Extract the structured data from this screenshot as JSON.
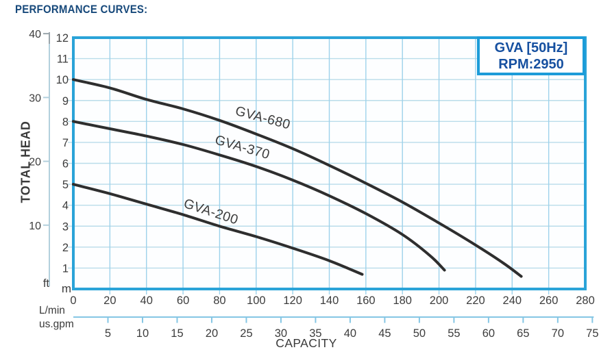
{
  "page_title": "PERFORMANCE CURVES:",
  "legend": {
    "line1": "GVA [50Hz]",
    "line2": "RPM:2950"
  },
  "chart_data": {
    "type": "line",
    "title": "GVA [50Hz] RPM:2950",
    "xlabel": "CAPACITY",
    "ylabel": "TOTAL HEAD",
    "grid": true,
    "x_axis_primary": {
      "unit": "L/min",
      "range": [
        0,
        280
      ],
      "ticks": [
        0,
        20,
        40,
        60,
        80,
        100,
        120,
        140,
        160,
        180,
        200,
        220,
        240,
        260,
        280
      ]
    },
    "x_axis_secondary": {
      "unit": "us.gpm",
      "ticks": [
        5,
        10,
        15,
        20,
        25,
        30,
        35,
        40,
        45,
        50,
        55,
        60,
        65,
        70,
        75
      ],
      "l_per_min_per_gpm": 3.785
    },
    "y_axis_primary": {
      "unit": "m",
      "range": [
        0,
        12
      ],
      "ticks": [
        1,
        2,
        3,
        4,
        5,
        6,
        7,
        8,
        9,
        10,
        11,
        12
      ]
    },
    "y_axis_secondary": {
      "unit": "ft",
      "ticks": [
        10,
        20,
        30,
        40
      ],
      "m_per_ft": 0.3048
    },
    "series": [
      {
        "name": "GVA-680",
        "points": [
          [
            0,
            10
          ],
          [
            20,
            9.6
          ],
          [
            40,
            9.05
          ],
          [
            60,
            8.6
          ],
          [
            80,
            8.05
          ],
          [
            100,
            7.4
          ],
          [
            120,
            6.7
          ],
          [
            140,
            5.9
          ],
          [
            160,
            5.05
          ],
          [
            180,
            4.15
          ],
          [
            200,
            3.15
          ],
          [
            220,
            2.1
          ],
          [
            235,
            1.25
          ],
          [
            245,
            0.6
          ]
        ]
      },
      {
        "name": "GVA-370",
        "points": [
          [
            0,
            8
          ],
          [
            20,
            7.65
          ],
          [
            40,
            7.3
          ],
          [
            60,
            6.9
          ],
          [
            80,
            6.4
          ],
          [
            100,
            5.85
          ],
          [
            120,
            5.2
          ],
          [
            140,
            4.45
          ],
          [
            160,
            3.6
          ],
          [
            180,
            2.6
          ],
          [
            195,
            1.6
          ],
          [
            203,
            0.9
          ]
        ]
      },
      {
        "name": "GVA-200",
        "points": [
          [
            0,
            5
          ],
          [
            20,
            4.55
          ],
          [
            40,
            4.05
          ],
          [
            60,
            3.55
          ],
          [
            80,
            3.0
          ],
          [
            100,
            2.5
          ],
          [
            120,
            1.95
          ],
          [
            140,
            1.35
          ],
          [
            158,
            0.7
          ]
        ]
      }
    ]
  },
  "colors": {
    "plot_border": "#2aa3d8",
    "grid_vertical": "#9dd2eb",
    "grid_horizontal": "#b9dcea",
    "curve": "#2e2e2e",
    "title_text": "#17497b",
    "legend_border": "#1c9cd9",
    "legend_text": "#1650a0",
    "tick_text": "#3c3c3c",
    "secondary_axis": "#b3d0dd",
    "gpm_axis": "#85c6e4"
  }
}
